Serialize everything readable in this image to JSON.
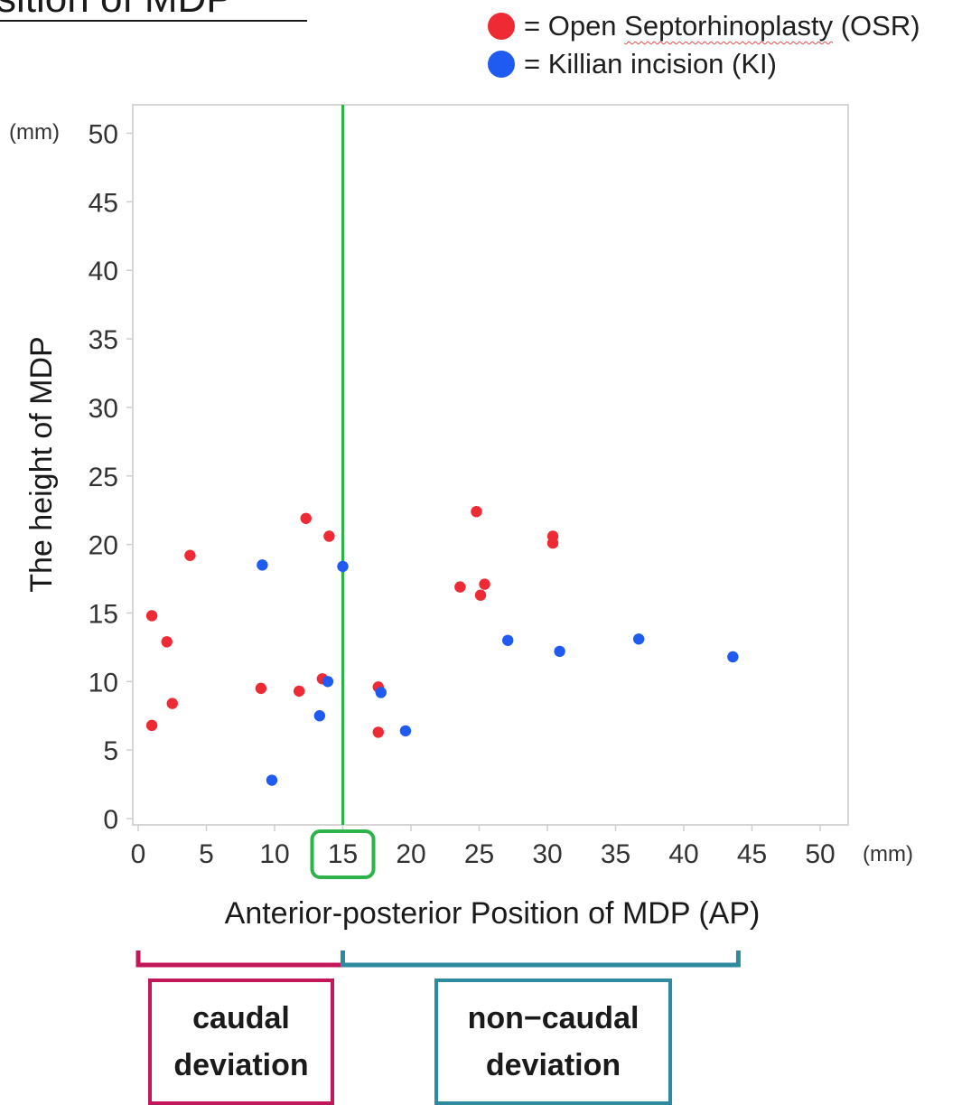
{
  "title_fragment": "sition of MDP",
  "legend": {
    "osr_prefix": "= Open ",
    "osr_word": "Septorhinoplasty",
    "osr_suffix": " (OSR)",
    "ki_label": "= Killian incision (KI)"
  },
  "colors": {
    "osr": "#ee2a35",
    "ki": "#1f5bf0",
    "cutoff_line": "#2eb24a",
    "caudal": "#c2185b",
    "non_caudal": "#2e8a9e",
    "frame": "#d6d6d6"
  },
  "chart_data": {
    "type": "scatter",
    "xlabel": "Anterior-posterior Position of MDP (AP)",
    "ylabel": "The height of MDP",
    "x_unit": "(mm)",
    "y_unit": "(mm)",
    "xlim": [
      0,
      52
    ],
    "ylim": [
      0,
      50
    ],
    "x_ticks": [
      0,
      5,
      10,
      15,
      20,
      25,
      30,
      35,
      40,
      45,
      50
    ],
    "y_ticks": [
      0,
      5,
      10,
      15,
      20,
      25,
      30,
      35,
      40,
      45,
      50
    ],
    "x_tick_labels": [
      "0",
      "5",
      "10",
      "15",
      "20",
      "25",
      "30",
      "35",
      "40",
      "45",
      "50"
    ],
    "y_tick_labels": [
      "0",
      "5",
      "10",
      "15",
      "20",
      "25",
      "30",
      "35",
      "40",
      "45",
      "50"
    ],
    "highlighted_x_tick": "15",
    "cutoff_x": 15,
    "grid": false,
    "legend_position": "top-right",
    "series": [
      {
        "name": "Open Septorhinoplasty (OSR)",
        "points": [
          [
            1.0,
            6.8
          ],
          [
            1.0,
            14.8
          ],
          [
            2.1,
            12.9
          ],
          [
            2.5,
            8.4
          ],
          [
            3.8,
            19.2
          ],
          [
            9.0,
            9.5
          ],
          [
            11.8,
            9.3
          ],
          [
            12.3,
            21.9
          ],
          [
            13.5,
            10.2
          ],
          [
            14.0,
            20.6
          ],
          [
            17.6,
            9.6
          ],
          [
            17.6,
            6.3
          ],
          [
            23.6,
            16.9
          ],
          [
            24.8,
            22.4
          ],
          [
            25.1,
            16.3
          ],
          [
            25.4,
            17.1
          ],
          [
            30.4,
            20.6
          ],
          [
            30.4,
            20.1
          ]
        ]
      },
      {
        "name": "Killian incision (KI)",
        "points": [
          [
            9.1,
            18.5
          ],
          [
            9.8,
            2.8
          ],
          [
            13.3,
            7.5
          ],
          [
            13.9,
            10.0
          ],
          [
            15.0,
            18.4
          ],
          [
            17.8,
            9.2
          ],
          [
            19.6,
            6.4
          ],
          [
            27.1,
            13.0
          ],
          [
            30.9,
            12.2
          ],
          [
            36.7,
            13.1
          ],
          [
            43.6,
            11.8
          ]
        ]
      }
    ]
  },
  "groups": {
    "caudal": {
      "line1": "caudal",
      "line2": "deviation",
      "x_from": 0,
      "x_to": 15
    },
    "non_caudal": {
      "line1": "non−caudal",
      "line2": "deviation",
      "x_from": 15,
      "x_to": 44
    }
  }
}
